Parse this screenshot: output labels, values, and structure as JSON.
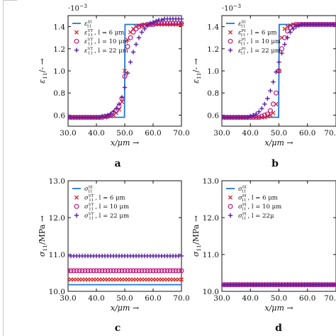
{
  "colors": {
    "si": "#1f77d6",
    "v6": "#d62728",
    "v10": "#c0187a",
    "v22": "#5a1fa8",
    "axis": "#111111",
    "frame": "#c8c8c8"
  },
  "chart_data": [
    {
      "type": "scatter",
      "panel_label": "a",
      "exponent": "·10",
      "exponent_power": "−3",
      "xlabel": "x/μm →",
      "ylabel": "ε11/- →",
      "xlim": [
        30,
        70
      ],
      "ylim": [
        0.5,
        1.5
      ],
      "xticks": [
        "30.0",
        "40.0",
        "50.0",
        "60.0",
        "70.0"
      ],
      "yticks": [
        "0.6",
        "0.8",
        "1.0",
        "1.2",
        "1.4"
      ],
      "legend_position": "top-left",
      "legend": [
        {
          "name": "ε11SI",
          "symbol": "line",
          "color_key": "si"
        },
        {
          "name": "ε11VT, l = 6 μm",
          "symbol": "x",
          "color_key": "v6"
        },
        {
          "name": "ε11VT, l = 10 μm",
          "symbol": "o",
          "color_key": "v10"
        },
        {
          "name": "ε11VT, l = 22 μm",
          "symbol": "+",
          "color_key": "v22"
        }
      ],
      "series": [
        {
          "color_key": "si",
          "kind": "line",
          "x": [
            30,
            49.9,
            50.1,
            70
          ],
          "y": [
            0.58,
            0.58,
            1.42,
            1.42
          ]
        },
        {
          "color_key": "v6",
          "kind": "x",
          "x": [
            30,
            31,
            32,
            33,
            34,
            35,
            36,
            37,
            38,
            39,
            40,
            41,
            42,
            43,
            44,
            45,
            46,
            47,
            48,
            49,
            50,
            51,
            52,
            53,
            54,
            55,
            56,
            57,
            58,
            59,
            60,
            61,
            62,
            63,
            64,
            65,
            66,
            67,
            68,
            69,
            70
          ],
          "y": [
            0.58,
            0.58,
            0.58,
            0.58,
            0.58,
            0.58,
            0.58,
            0.58,
            0.58,
            0.58,
            0.58,
            0.58,
            0.58,
            0.58,
            0.59,
            0.59,
            0.6,
            0.62,
            0.65,
            0.72,
            1.0,
            1.28,
            1.35,
            1.38,
            1.4,
            1.41,
            1.41,
            1.42,
            1.42,
            1.42,
            1.42,
            1.42,
            1.42,
            1.42,
            1.42,
            1.42,
            1.42,
            1.42,
            1.42,
            1.42,
            1.42
          ]
        },
        {
          "color_key": "v10",
          "kind": "o",
          "x": [
            30,
            31,
            32,
            33,
            34,
            35,
            36,
            37,
            38,
            39,
            40,
            41,
            42,
            43,
            44,
            45,
            46,
            47,
            48,
            49,
            50,
            51,
            52,
            53,
            54,
            55,
            56,
            57,
            58,
            59,
            60,
            61,
            62,
            63,
            64,
            65,
            66,
            67,
            68,
            69,
            70
          ],
          "y": [
            0.58,
            0.58,
            0.58,
            0.58,
            0.58,
            0.58,
            0.58,
            0.58,
            0.58,
            0.58,
            0.58,
            0.58,
            0.58,
            0.59,
            0.59,
            0.6,
            0.62,
            0.64,
            0.68,
            0.75,
            0.95,
            1.22,
            1.3,
            1.35,
            1.38,
            1.4,
            1.41,
            1.41,
            1.42,
            1.42,
            1.42,
            1.43,
            1.43,
            1.43,
            1.43,
            1.43,
            1.43,
            1.43,
            1.43,
            1.43,
            1.43
          ]
        },
        {
          "color_key": "v22",
          "kind": "+",
          "x": [
            30,
            31,
            32,
            33,
            34,
            35,
            36,
            37,
            38,
            39,
            40,
            41,
            42,
            43,
            44,
            45,
            46,
            47,
            48,
            49,
            50,
            51,
            52,
            53,
            54,
            55,
            56,
            57,
            58,
            59,
            60,
            61,
            62,
            63,
            64,
            65,
            66,
            67,
            68,
            69,
            70
          ],
          "y": [
            0.58,
            0.58,
            0.58,
            0.58,
            0.58,
            0.58,
            0.58,
            0.58,
            0.58,
            0.58,
            0.58,
            0.58,
            0.59,
            0.59,
            0.6,
            0.61,
            0.63,
            0.66,
            0.7,
            0.76,
            0.85,
            0.98,
            1.08,
            1.17,
            1.24,
            1.3,
            1.35,
            1.38,
            1.41,
            1.43,
            1.44,
            1.45,
            1.46,
            1.46,
            1.47,
            1.47,
            1.47,
            1.47,
            1.47,
            1.47,
            1.47
          ]
        }
      ]
    },
    {
      "type": "scatter",
      "panel_label": "b",
      "exponent": "·10",
      "exponent_power": "−3",
      "xlabel": "x/μm →",
      "ylabel": "ε11/- →",
      "xlim": [
        30,
        70
      ],
      "ylim": [
        0.5,
        1.5
      ],
      "xticks": [
        "30.0",
        "40.0",
        "50.0",
        "60.0",
        "70."
      ],
      "yticks": [
        "0.6",
        "0.8",
        "1.0",
        "1.2",
        "1.4"
      ],
      "legend_position": "top-left",
      "legend": [
        {
          "name": "ε11SI",
          "symbol": "line",
          "color_key": "si"
        },
        {
          "name": "ε11PI, l = 6 μm",
          "symbol": "x",
          "color_key": "v6"
        },
        {
          "name": "ε11PI, l = 10 μm",
          "symbol": "o",
          "color_key": "v10"
        },
        {
          "name": "ε11PI, l = 22 μm",
          "symbol": "+",
          "color_key": "v22"
        }
      ],
      "series": [
        {
          "color_key": "si",
          "kind": "line",
          "x": [
            30,
            49.9,
            50.1,
            70
          ],
          "y": [
            0.58,
            0.58,
            1.42,
            1.42
          ]
        },
        {
          "color_key": "v6",
          "kind": "x",
          "x": [
            30,
            31,
            32,
            33,
            34,
            35,
            36,
            37,
            38,
            39,
            40,
            41,
            42,
            43,
            44,
            45,
            46,
            47,
            48,
            49,
            50,
            51,
            52,
            53,
            54,
            55,
            56,
            57,
            58,
            59,
            60,
            61,
            62,
            63,
            64,
            65,
            66,
            67,
            68,
            69,
            70
          ],
          "y": [
            0.58,
            0.58,
            0.58,
            0.58,
            0.58,
            0.58,
            0.58,
            0.58,
            0.58,
            0.58,
            0.58,
            0.58,
            0.58,
            0.58,
            0.58,
            0.58,
            0.59,
            0.6,
            0.62,
            0.7,
            1.0,
            1.3,
            1.38,
            1.4,
            1.41,
            1.42,
            1.42,
            1.42,
            1.42,
            1.42,
            1.42,
            1.42,
            1.42,
            1.42,
            1.42,
            1.42,
            1.42,
            1.42,
            1.42,
            1.42,
            1.42
          ]
        },
        {
          "color_key": "v10",
          "kind": "o",
          "x": [
            30,
            31,
            32,
            33,
            34,
            35,
            36,
            37,
            38,
            39,
            40,
            41,
            42,
            43,
            44,
            45,
            46,
            47,
            48,
            49,
            50,
            51,
            52,
            53,
            54,
            55,
            56,
            57,
            58,
            59,
            60,
            61,
            62,
            63,
            64,
            65,
            66,
            67,
            68,
            69,
            70
          ],
          "y": [
            0.58,
            0.58,
            0.58,
            0.58,
            0.58,
            0.58,
            0.58,
            0.58,
            0.58,
            0.58,
            0.58,
            0.58,
            0.58,
            0.58,
            0.59,
            0.6,
            0.61,
            0.64,
            0.7,
            0.8,
            1.0,
            1.2,
            1.3,
            1.36,
            1.39,
            1.41,
            1.42,
            1.42,
            1.42,
            1.42,
            1.42,
            1.42,
            1.42,
            1.42,
            1.42,
            1.42,
            1.42,
            1.42,
            1.42,
            1.42,
            1.42
          ]
        },
        {
          "color_key": "v22",
          "kind": "+",
          "x": [
            30,
            31,
            32,
            33,
            34,
            35,
            36,
            37,
            38,
            39,
            40,
            41,
            42,
            43,
            44,
            45,
            46,
            47,
            48,
            49,
            50,
            51,
            52,
            53,
            54,
            55,
            56,
            57,
            58,
            59,
            60,
            61,
            62,
            63,
            64,
            65,
            66,
            67,
            68,
            69,
            70
          ],
          "y": [
            0.58,
            0.58,
            0.58,
            0.58,
            0.58,
            0.58,
            0.58,
            0.58,
            0.58,
            0.58,
            0.59,
            0.6,
            0.61,
            0.63,
            0.66,
            0.7,
            0.75,
            0.82,
            0.9,
            0.99,
            1.08,
            1.16,
            1.24,
            1.3,
            1.35,
            1.38,
            1.4,
            1.41,
            1.42,
            1.42,
            1.42,
            1.42,
            1.42,
            1.42,
            1.42,
            1.42,
            1.42,
            1.42,
            1.42,
            1.42,
            1.42
          ]
        }
      ]
    },
    {
      "type": "scatter",
      "panel_label": "c",
      "xlabel": "x/μm →",
      "ylabel": "σ11/MPa →",
      "xlim": [
        30,
        70
      ],
      "ylim": [
        10,
        13
      ],
      "xticks": [
        "30.0",
        "40.0",
        "50.0",
        "60.0",
        "70.0"
      ],
      "yticks": [
        "10.0",
        "11.0",
        "12.0",
        "13.0"
      ],
      "legend_position": "top-left",
      "legend": [
        {
          "name": "σ11SI",
          "symbol": "line",
          "color_key": "si"
        },
        {
          "name": "σ11VT, l = 6 μm",
          "symbol": "x",
          "color_key": "v6"
        },
        {
          "name": "σ11VT, l = 10 μm",
          "symbol": "o",
          "color_key": "v10"
        },
        {
          "name": "σ11VT, l = 22 μm",
          "symbol": "+",
          "color_key": "v22"
        }
      ],
      "series": [
        {
          "color_key": "si",
          "kind": "line",
          "x": [
            30,
            70
          ],
          "y": [
            10.18,
            10.18
          ]
        },
        {
          "color_key": "v6",
          "kind": "x",
          "constant": 10.32,
          "x_start": 30,
          "x_step": 1,
          "n": 41
        },
        {
          "color_key": "v10",
          "kind": "o",
          "constant": 10.56,
          "x_start": 30,
          "x_step": 1,
          "n": 41
        },
        {
          "color_key": "v22",
          "kind": "+",
          "constant": 10.96,
          "x_start": 30,
          "x_step": 1,
          "n": 41
        }
      ]
    },
    {
      "type": "scatter",
      "panel_label": "d",
      "xlabel": "x/μm →",
      "ylabel": "σ11/MPa →",
      "xlim": [
        30,
        70
      ],
      "ylim": [
        10,
        13
      ],
      "xticks": [
        "30.0",
        "40.0",
        "50.0",
        "60.0",
        "70."
      ],
      "yticks": [
        "10.0",
        "11.0",
        "12.0",
        "13.0"
      ],
      "legend_position": "top-left",
      "legend": [
        {
          "name": "σ11SI",
          "symbol": "line",
          "color_key": "si"
        },
        {
          "name": "σ11PI, l = 6 μm",
          "symbol": "x",
          "color_key": "v6"
        },
        {
          "name": "σ11PI, l = 10 μm",
          "symbol": "o",
          "color_key": "v10"
        },
        {
          "name": "σ11PI, l = 22μ",
          "symbol": "+",
          "color_key": "v22"
        }
      ],
      "series": [
        {
          "color_key": "si",
          "kind": "line",
          "x": [
            30,
            70
          ],
          "y": [
            10.18,
            10.18
          ]
        },
        {
          "color_key": "v6",
          "kind": "x",
          "constant": 10.18,
          "x_start": 30,
          "x_step": 1,
          "n": 41
        },
        {
          "color_key": "v10",
          "kind": "o",
          "constant": 10.18,
          "x_start": 30,
          "x_step": 1,
          "n": 41
        },
        {
          "color_key": "v22",
          "kind": "+",
          "constant": 10.18,
          "x_start": 30,
          "x_step": 1,
          "n": 41
        }
      ]
    }
  ]
}
